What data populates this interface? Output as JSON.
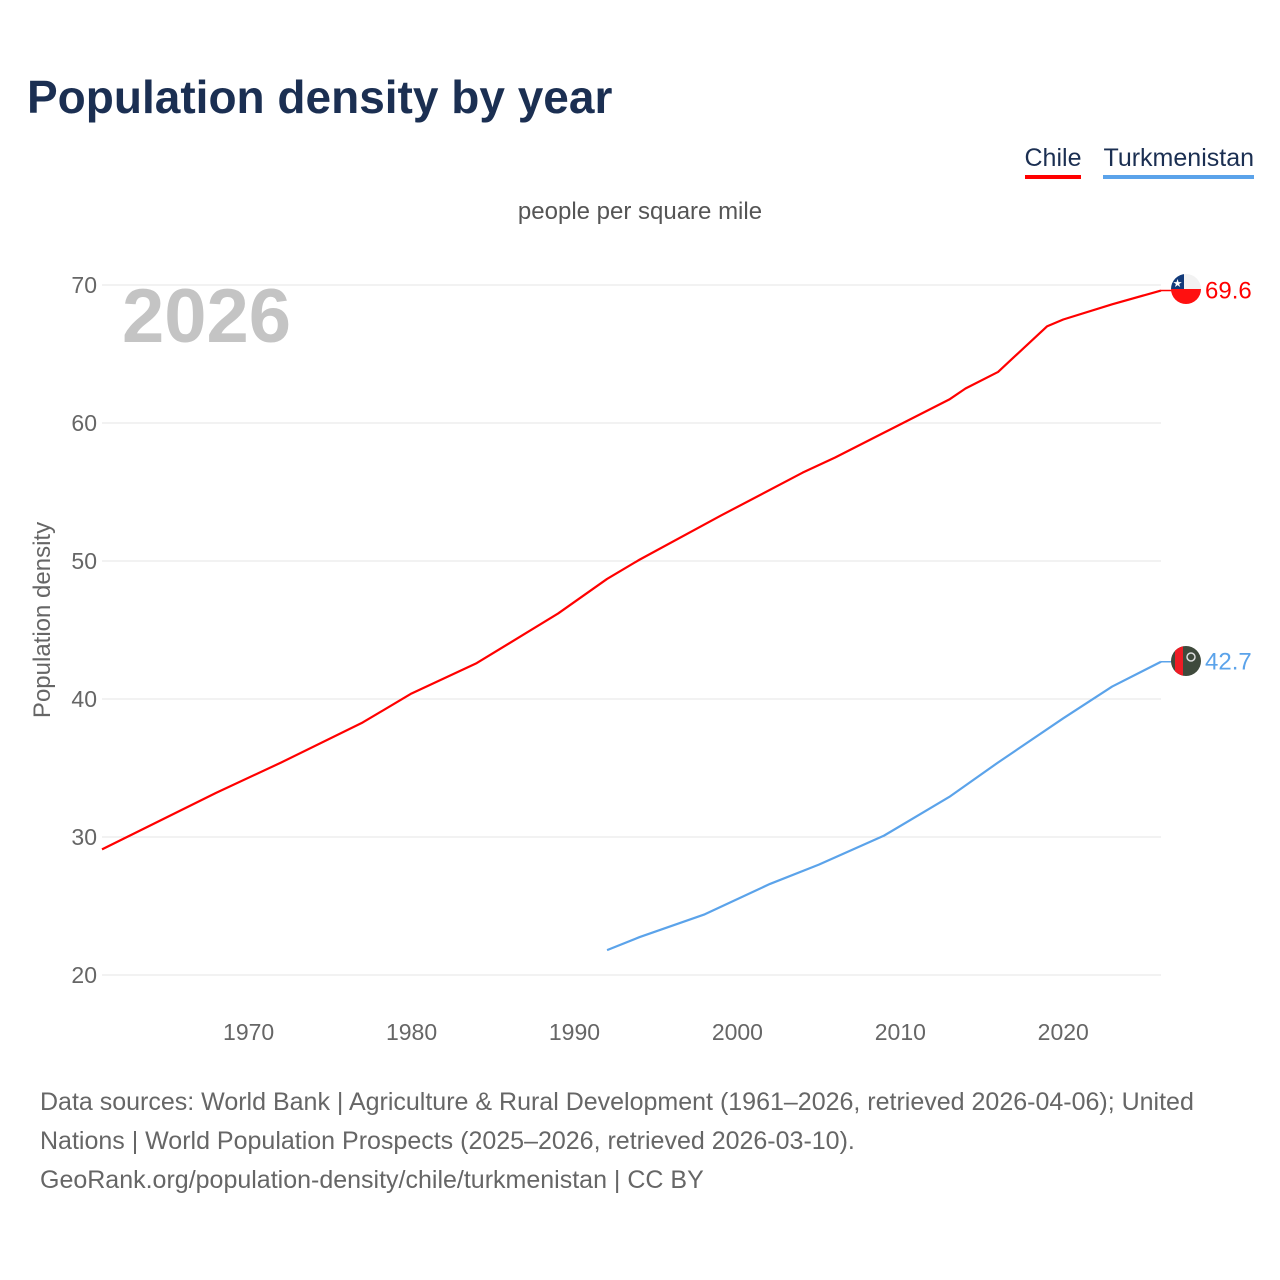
{
  "title": "Population density by year",
  "chart_data": {
    "type": "line",
    "title": "Population density by year",
    "subtitle": "people per square mile",
    "xlabel": "",
    "ylabel": "Population density",
    "xlim": [
      1961,
      2026
    ],
    "ylim": [
      20,
      70
    ],
    "xticks": [
      1970,
      1980,
      1990,
      2000,
      2010,
      2020
    ],
    "yticks": [
      20,
      30,
      40,
      50,
      60,
      70
    ],
    "grid": true,
    "legend_position": "top-right",
    "year_watermark": "2026",
    "series": [
      {
        "name": "Chile",
        "color": "#ff0000",
        "end_label": "69.6",
        "x": [
          1961,
          1968,
          1972,
          1977,
          1980,
          1984,
          1989,
          1992,
          1994,
          1999,
          2004,
          2006,
          2009,
          2013,
          2014,
          2016,
          2019,
          2020,
          2023,
          2026
        ],
        "y": [
          29.1,
          33.2,
          35.4,
          38.3,
          40.4,
          42.6,
          46.2,
          48.7,
          50.1,
          53.3,
          56.4,
          57.5,
          59.3,
          61.7,
          62.5,
          63.7,
          67.0,
          67.5,
          68.6,
          69.6
        ]
      },
      {
        "name": "Turkmenistan",
        "color": "#5ba3ea",
        "end_label": "42.7",
        "x": [
          1992,
          1994,
          1998,
          2002,
          2005,
          2009,
          2013,
          2016,
          2020,
          2023,
          2026
        ],
        "y": [
          21.8,
          22.75,
          24.4,
          26.6,
          28.0,
          30.1,
          32.9,
          35.4,
          38.6,
          40.9,
          42.7
        ]
      }
    ]
  },
  "footer": {
    "line1": "Data sources: World Bank | Agriculture & Rural Development (1961–2026, retrieved 2026-04-06); United Nations | World Population Prospects (2025–2026, retrieved 2026-03-10).",
    "line2": "GeoRank.org/population-density/chile/turkmenistan | CC BY"
  }
}
